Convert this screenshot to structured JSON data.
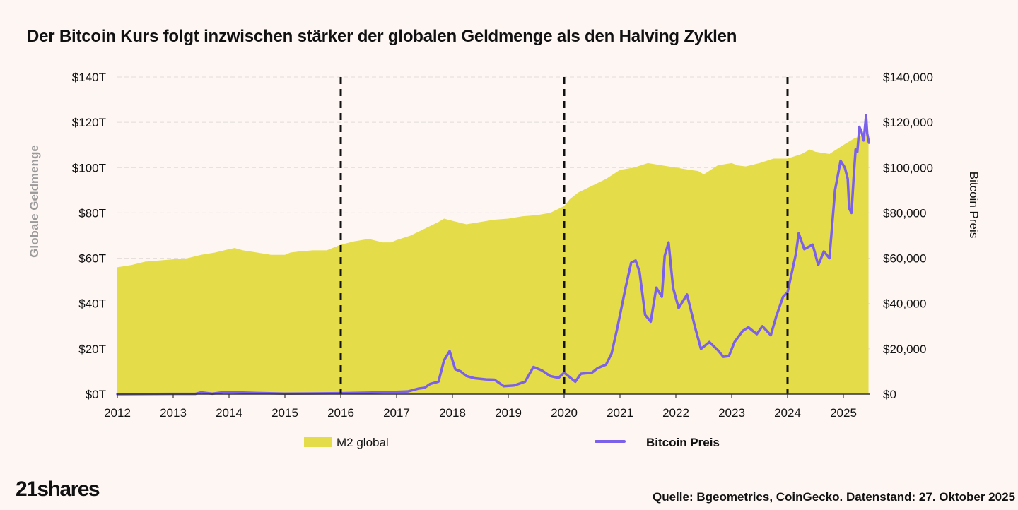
{
  "title": "Der Bitcoin Kurs folgt inzwischen stärker der globalen Geldmenge als den Halving Zyklen",
  "source": "Quelle: Bgeometrics, CoinGecko. Datenstand: 27. Oktober 2025",
  "logo": "21shares",
  "colors": {
    "m2": "#e4dc48",
    "btc": "#7b61ea",
    "background": "#fdf6f3",
    "halving": "#111111"
  },
  "chart_data": {
    "type": "area+line",
    "title": "Der Bitcoin Kurs folgt inzwischen stärker der globalen Geldmenge als den Halving Zyklen",
    "x_ticks": [
      "2012",
      "2013",
      "2014",
      "2015",
      "2016",
      "2017",
      "2018",
      "2019",
      "2020",
      "2021",
      "2022",
      "2023",
      "2024",
      "2025"
    ],
    "xlim": [
      2012,
      2025.45
    ],
    "y_left": {
      "label": "Globale Geldmenge",
      "ticks": [
        "$0T",
        "$20T",
        "$40T",
        "$60T",
        "$80T",
        "$100T",
        "$120T",
        "$140T"
      ],
      "lim": [
        0,
        140
      ],
      "unit": "T USD"
    },
    "y_right": {
      "label": "Bitcoin Preis",
      "ticks": [
        "$0",
        "$20,000",
        "$40,000",
        "$60,000",
        "$80,000",
        "$100,000",
        "$120,000",
        "$140,000"
      ],
      "lim": [
        0,
        140000
      ],
      "unit": "USD"
    },
    "halving_lines": [
      2016.0,
      2020.0,
      2024.0
    ],
    "legend": [
      "M2 global",
      "Bitcoin Preis"
    ],
    "series": [
      {
        "name": "M2 global",
        "axis": "left",
        "style": "area",
        "points": [
          [
            2012.0,
            56
          ],
          [
            2012.25,
            57
          ],
          [
            2012.5,
            58.5
          ],
          [
            2012.75,
            59
          ],
          [
            2013.0,
            59.5
          ],
          [
            2013.25,
            60
          ],
          [
            2013.5,
            61.5
          ],
          [
            2013.75,
            62.5
          ],
          [
            2014.0,
            64
          ],
          [
            2014.1,
            64.5
          ],
          [
            2014.25,
            63.5
          ],
          [
            2014.5,
            62.5
          ],
          [
            2014.75,
            61.5
          ],
          [
            2015.0,
            61.5
          ],
          [
            2015.1,
            62.5
          ],
          [
            2015.25,
            63
          ],
          [
            2015.5,
            63.5
          ],
          [
            2015.75,
            63.5
          ],
          [
            2016.0,
            66
          ],
          [
            2016.25,
            67.5
          ],
          [
            2016.5,
            68.5
          ],
          [
            2016.75,
            67
          ],
          [
            2016.9,
            67
          ],
          [
            2017.0,
            68
          ],
          [
            2017.25,
            70
          ],
          [
            2017.5,
            73
          ],
          [
            2017.75,
            76
          ],
          [
            2017.85,
            77.5
          ],
          [
            2018.0,
            76.5
          ],
          [
            2018.25,
            75
          ],
          [
            2018.5,
            76
          ],
          [
            2018.75,
            77
          ],
          [
            2019.0,
            77.5
          ],
          [
            2019.25,
            78.5
          ],
          [
            2019.5,
            79
          ],
          [
            2019.75,
            80
          ],
          [
            2020.0,
            83
          ],
          [
            2020.1,
            86
          ],
          [
            2020.25,
            89
          ],
          [
            2020.5,
            92
          ],
          [
            2020.75,
            95
          ],
          [
            2021.0,
            99
          ],
          [
            2021.25,
            100
          ],
          [
            2021.5,
            102
          ],
          [
            2021.75,
            101
          ],
          [
            2022.0,
            100
          ],
          [
            2022.25,
            99
          ],
          [
            2022.4,
            98.5
          ],
          [
            2022.5,
            97
          ],
          [
            2022.75,
            101
          ],
          [
            2023.0,
            102
          ],
          [
            2023.1,
            101
          ],
          [
            2023.25,
            100.5
          ],
          [
            2023.5,
            102
          ],
          [
            2023.75,
            104
          ],
          [
            2024.0,
            104
          ],
          [
            2024.25,
            106
          ],
          [
            2024.4,
            108
          ],
          [
            2024.5,
            107
          ],
          [
            2024.75,
            106
          ],
          [
            2025.0,
            110
          ],
          [
            2025.2,
            113
          ],
          [
            2025.45,
            115
          ]
        ]
      },
      {
        "name": "Bitcoin Preis",
        "axis": "right",
        "style": "line",
        "points": [
          [
            2012.0,
            10
          ],
          [
            2013.0,
            100
          ],
          [
            2013.4,
            130
          ],
          [
            2013.5,
            800
          ],
          [
            2013.7,
            200
          ],
          [
            2013.95,
            1000
          ],
          [
            2014.1,
            800
          ],
          [
            2014.5,
            500
          ],
          [
            2015.0,
            250
          ],
          [
            2015.5,
            300
          ],
          [
            2016.0,
            420
          ],
          [
            2016.5,
            650
          ],
          [
            2017.0,
            1000
          ],
          [
            2017.2,
            1200
          ],
          [
            2017.4,
            2500
          ],
          [
            2017.5,
            2800
          ],
          [
            2017.6,
            4500
          ],
          [
            2017.75,
            5500
          ],
          [
            2017.85,
            15000
          ],
          [
            2017.95,
            19000
          ],
          [
            2018.05,
            11000
          ],
          [
            2018.15,
            10000
          ],
          [
            2018.25,
            8000
          ],
          [
            2018.4,
            7000
          ],
          [
            2018.6,
            6500
          ],
          [
            2018.75,
            6400
          ],
          [
            2018.92,
            3500
          ],
          [
            2019.1,
            3800
          ],
          [
            2019.3,
            5500
          ],
          [
            2019.45,
            12000
          ],
          [
            2019.6,
            10500
          ],
          [
            2019.75,
            8000
          ],
          [
            2019.9,
            7200
          ],
          [
            2020.0,
            9500
          ],
          [
            2020.2,
            5500
          ],
          [
            2020.3,
            9000
          ],
          [
            2020.5,
            9500
          ],
          [
            2020.6,
            11500
          ],
          [
            2020.75,
            13000
          ],
          [
            2020.85,
            18000
          ],
          [
            2020.95,
            29000
          ],
          [
            2021.1,
            47000
          ],
          [
            2021.2,
            58000
          ],
          [
            2021.28,
            59000
          ],
          [
            2021.35,
            54000
          ],
          [
            2021.45,
            35000
          ],
          [
            2021.55,
            32000
          ],
          [
            2021.65,
            47000
          ],
          [
            2021.75,
            43000
          ],
          [
            2021.8,
            61000
          ],
          [
            2021.87,
            67000
          ],
          [
            2021.95,
            47000
          ],
          [
            2022.05,
            38000
          ],
          [
            2022.2,
            44000
          ],
          [
            2022.35,
            29000
          ],
          [
            2022.45,
            20000
          ],
          [
            2022.6,
            23000
          ],
          [
            2022.75,
            19500
          ],
          [
            2022.85,
            16500
          ],
          [
            2022.95,
            16800
          ],
          [
            2023.05,
            23000
          ],
          [
            2023.2,
            28000
          ],
          [
            2023.3,
            29500
          ],
          [
            2023.45,
            26500
          ],
          [
            2023.55,
            30000
          ],
          [
            2023.7,
            26000
          ],
          [
            2023.8,
            34500
          ],
          [
            2023.92,
            43000
          ],
          [
            2024.0,
            45000
          ],
          [
            2024.15,
            62000
          ],
          [
            2024.2,
            71000
          ],
          [
            2024.3,
            64000
          ],
          [
            2024.45,
            66000
          ],
          [
            2024.55,
            57000
          ],
          [
            2024.65,
            63000
          ],
          [
            2024.75,
            60000
          ],
          [
            2024.85,
            90000
          ],
          [
            2024.95,
            103000
          ],
          [
            2025.05,
            100000
          ],
          [
            2025.15,
            95000
          ],
          [
            2025.2,
            82000
          ],
          [
            2025.28,
            80000
          ],
          [
            2025.35,
            95000
          ],
          [
            2025.42,
            108000
          ],
          [
            2025.48,
            107000
          ],
          [
            2025.55,
            118000
          ],
          [
            2025.62,
            116000
          ],
          [
            2025.7,
            112000
          ],
          [
            2025.78,
            123000
          ],
          [
            2025.82,
            115000
          ],
          [
            2025.88,
            111000
          ]
        ]
      }
    ]
  }
}
